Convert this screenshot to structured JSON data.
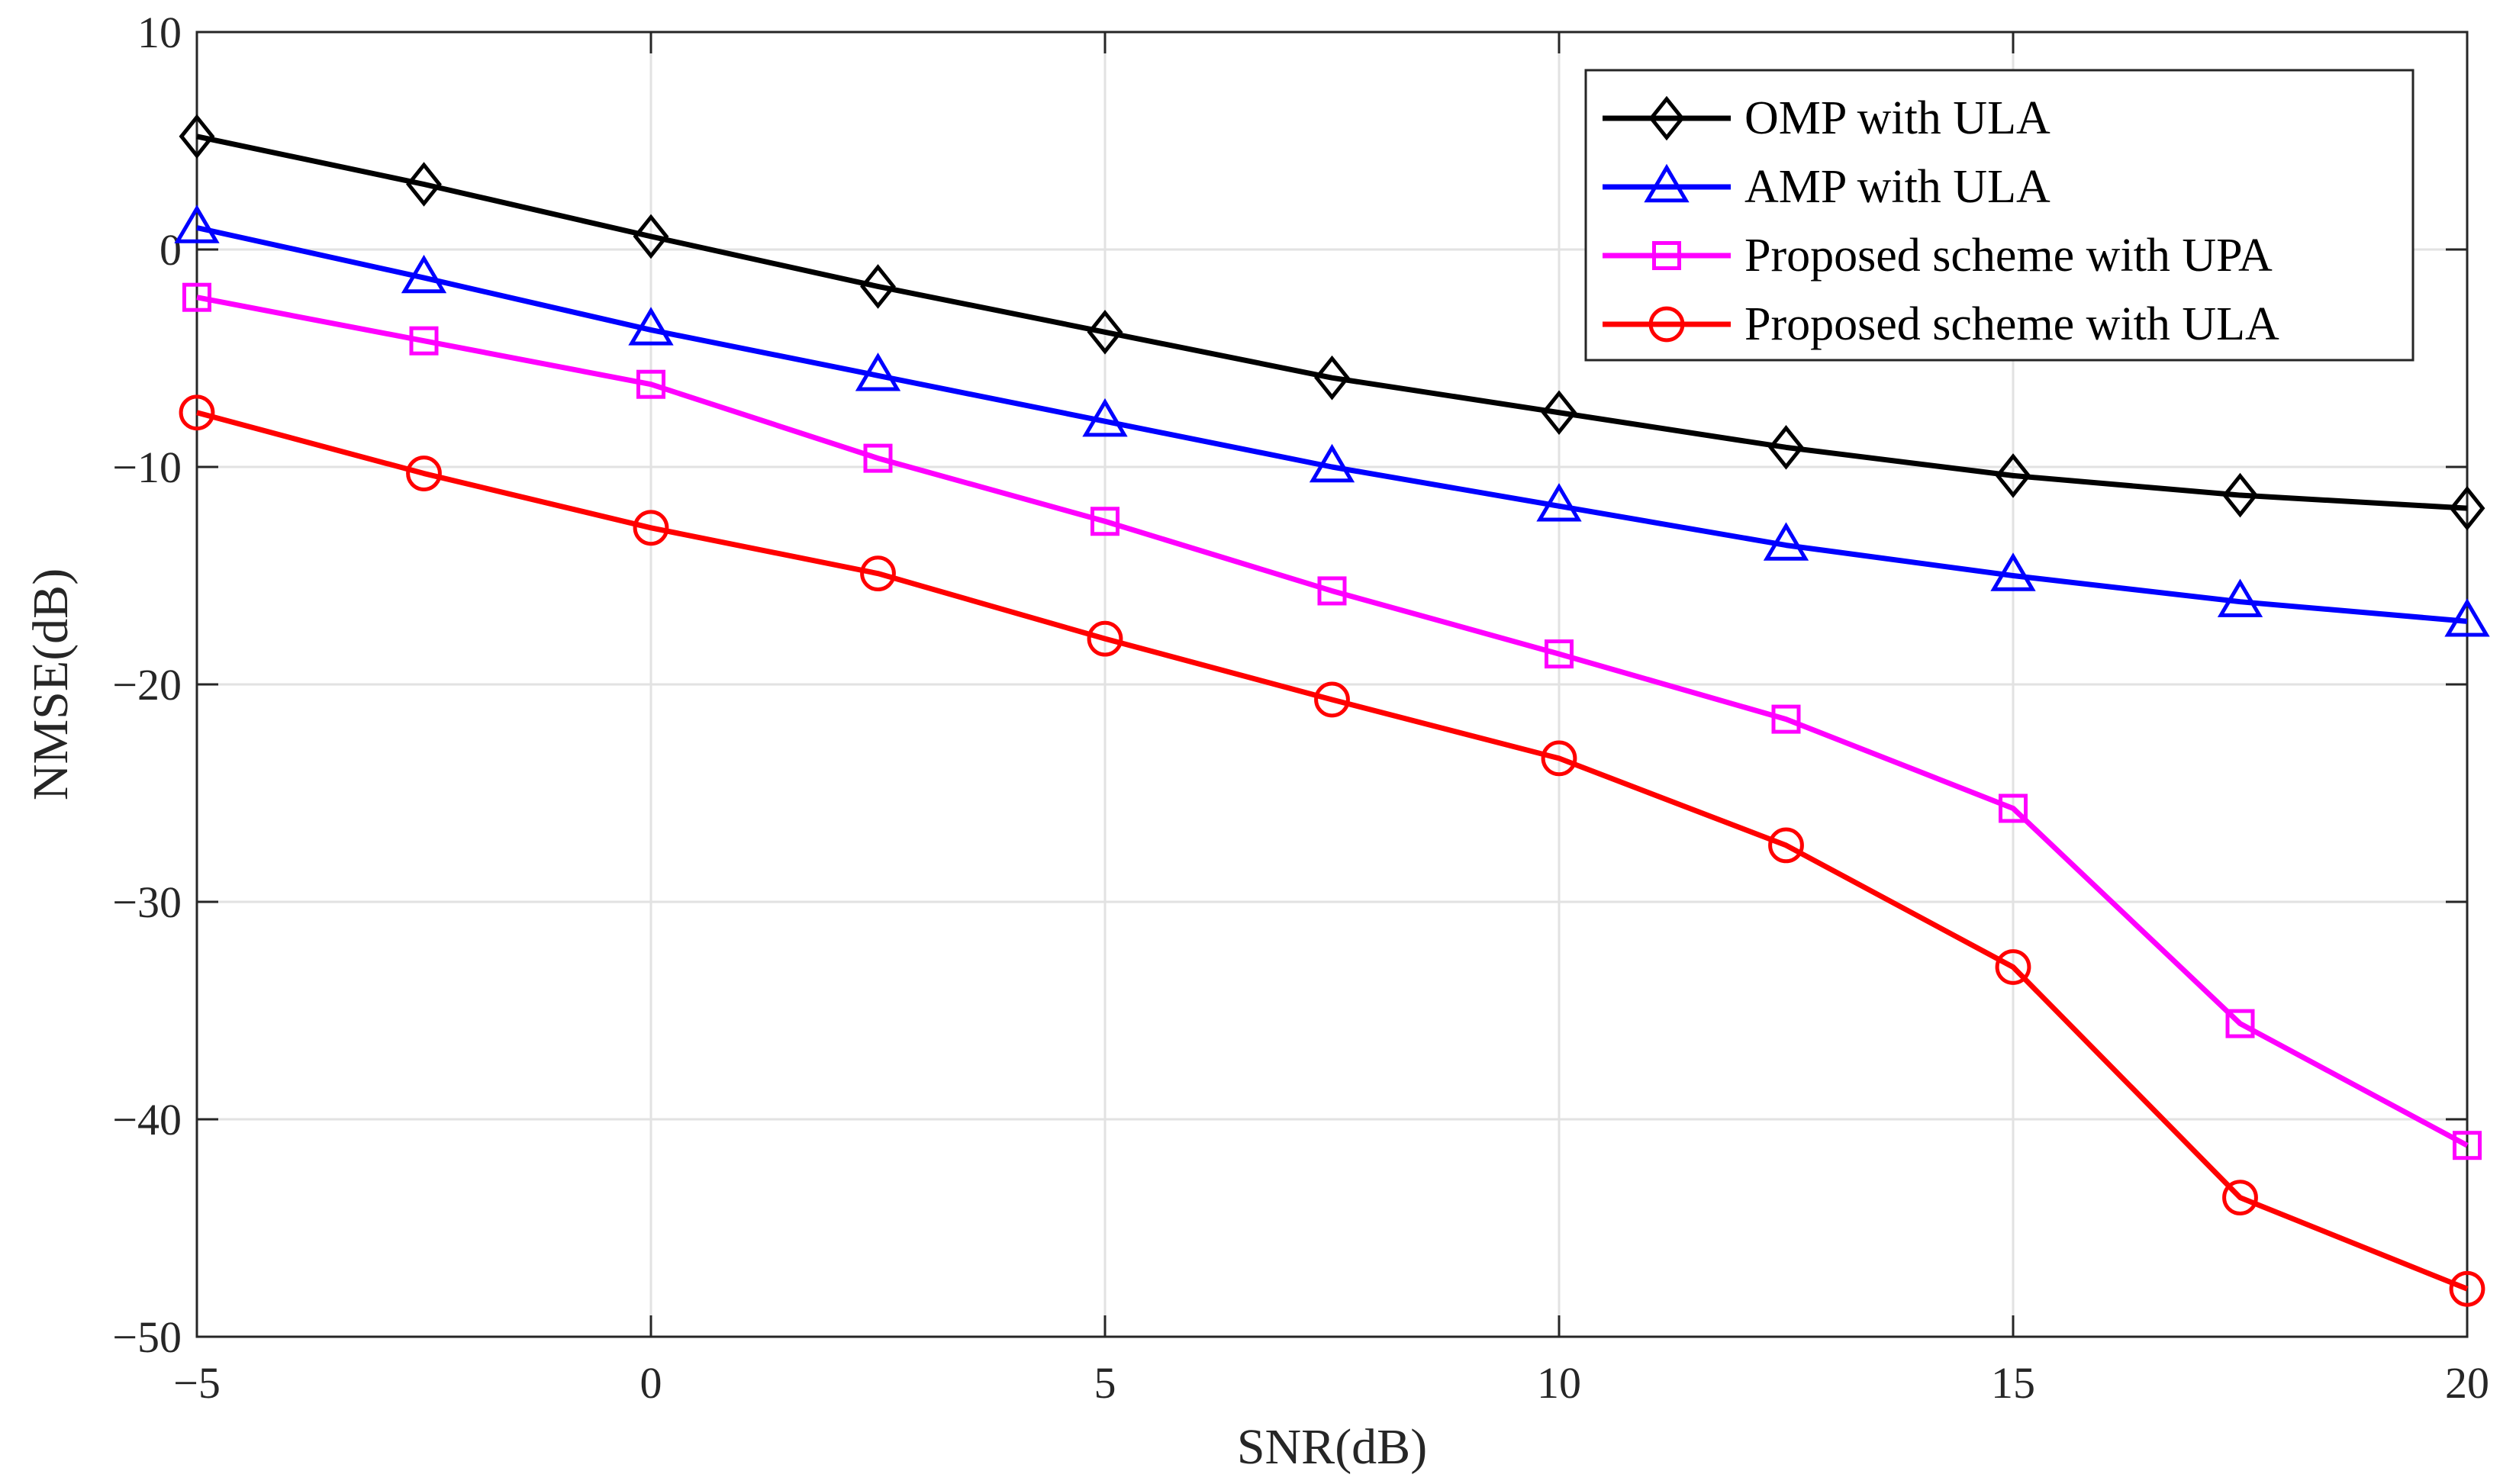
{
  "chart_data": {
    "type": "line",
    "title": "",
    "xlabel": "SNR(dB)",
    "ylabel": "NMSE(dB)",
    "xlim": [
      -5,
      20
    ],
    "ylim": [
      -50,
      10
    ],
    "xticks": [
      -5,
      0,
      5,
      10,
      15,
      20
    ],
    "yticks": [
      10,
      0,
      -10,
      -20,
      -30,
      -40,
      -50
    ],
    "xtick_labels": [
      "−5",
      "0",
      "5",
      "10",
      "15",
      "20"
    ],
    "ytick_labels": [
      "10",
      "0",
      "−10",
      "−20",
      "−30",
      "−40",
      "−50"
    ],
    "grid": true,
    "legend_position": "top-right",
    "x": [
      -5,
      -2.5,
      0,
      2.5,
      5,
      7.5,
      10,
      12.5,
      15,
      17.5,
      20
    ],
    "series": [
      {
        "name": "OMP with ULA",
        "color": "#000000",
        "marker": "diamond",
        "values": [
          5.2,
          3.0,
          0.6,
          -1.7,
          -3.8,
          -5.9,
          -7.5,
          -9.1,
          -10.4,
          -11.3,
          -11.9
        ]
      },
      {
        "name": "AMP with ULA",
        "color": "#0000ff",
        "marker": "triangle",
        "values": [
          1.0,
          -1.3,
          -3.7,
          -5.8,
          -7.9,
          -10.0,
          -11.8,
          -13.6,
          -15.0,
          -16.2,
          -17.1
        ]
      },
      {
        "name": "Proposed scheme with UPA",
        "color": "#ff00ff",
        "marker": "square",
        "values": [
          -2.2,
          -4.2,
          -6.2,
          -9.6,
          -12.5,
          -15.7,
          -18.6,
          -21.6,
          -25.7,
          -35.6,
          -41.2
        ]
      },
      {
        "name": "Proposed scheme with ULA",
        "color": "#ff0000",
        "marker": "circle",
        "values": [
          -7.5,
          -10.3,
          -12.8,
          -14.9,
          -17.9,
          -20.7,
          -23.4,
          -27.4,
          -33.0,
          -43.6,
          -47.8
        ]
      }
    ]
  }
}
